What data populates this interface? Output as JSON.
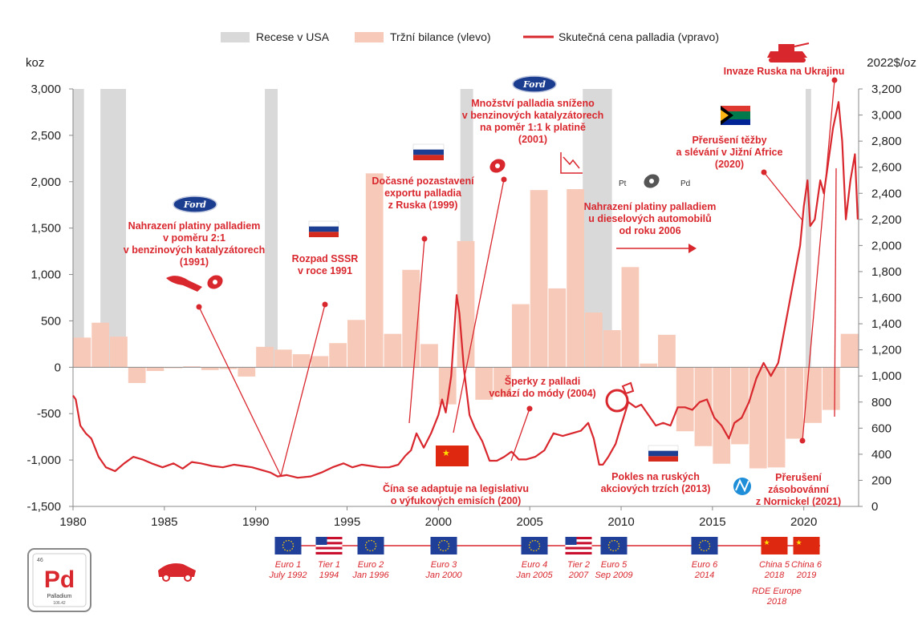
{
  "chart_data": {
    "type": "bar+line",
    "y_left_label": "koz",
    "y_right_label": "2022$/oz",
    "x_range": [
      1980,
      2023
    ],
    "y_left_range": [
      -1500,
      3000
    ],
    "y_right_range": [
      0,
      3200
    ],
    "x_ticks": [
      "1980",
      "1985",
      "1990",
      "1995",
      "2000",
      "2005",
      "2010",
      "2015",
      "2020"
    ],
    "y_left_ticks": [
      "-1,500",
      "-1,000",
      "-500",
      "0",
      "500",
      "1,000",
      "1,500",
      "2,000",
      "2,500",
      "3,000"
    ],
    "y_right_ticks": [
      "0",
      "200",
      "400",
      "600",
      "800",
      "1,000",
      "1,200",
      "1,400",
      "1,600",
      "1,800",
      "2,000",
      "2,200",
      "2,400",
      "2,600",
      "2,800",
      "3,000",
      "3,200"
    ],
    "legend": [
      {
        "label": "Recese v USA",
        "color": "#d9d9d9",
        "kind": "box"
      },
      {
        "label": "Tržní bilance (vlevo)",
        "color": "#f7c9b8",
        "kind": "box"
      },
      {
        "label": "Skutečná cena palladia (vpravo)",
        "color": "#d9272e",
        "kind": "line"
      }
    ],
    "recessions": [
      [
        1980.0,
        1980.6
      ],
      [
        1981.5,
        1982.9
      ],
      [
        1990.5,
        1991.2
      ],
      [
        2001.2,
        2001.9
      ],
      [
        2007.9,
        2009.5
      ],
      [
        2020.1,
        2020.4
      ]
    ],
    "market_balance": {
      "years": [
        1980,
        1981,
        1982,
        1983,
        1984,
        1985,
        1986,
        1987,
        1988,
        1989,
        1990,
        1991,
        1992,
        1993,
        1994,
        1995,
        1996,
        1997,
        1998,
        1999,
        2000,
        2001,
        2002,
        2003,
        2004,
        2005,
        2006,
        2007,
        2008,
        2009,
        2010,
        2011,
        2012,
        2013,
        2014,
        2015,
        2016,
        2017,
        2018,
        2019,
        2020,
        2021,
        2022
      ],
      "values": [
        320,
        480,
        330,
        -170,
        -40,
        -10,
        10,
        -30,
        -20,
        -100,
        220,
        190,
        140,
        120,
        260,
        510,
        2090,
        360,
        1050,
        250,
        -400,
        1360,
        -350,
        -320,
        680,
        1910,
        850,
        1920,
        590,
        400,
        1080,
        40,
        350,
        -690,
        -850,
        -1040,
        -830,
        -1090,
        -1080,
        -770,
        -600,
        -460,
        360
      ]
    },
    "price": {
      "x": [
        1980.0,
        1980.15,
        1980.4,
        1980.7,
        1981.0,
        1981.4,
        1981.8,
        1982.3,
        1982.8,
        1983.3,
        1983.8,
        1984.3,
        1984.9,
        1985.5,
        1986.0,
        1986.5,
        1987.0,
        1987.6,
        1988.2,
        1988.8,
        1989.3,
        1989.8,
        1990.3,
        1990.8,
        1991.2,
        1991.7,
        1992.3,
        1993.0,
        1993.6,
        1994.2,
        1994.8,
        1995.3,
        1995.8,
        1996.3,
        1996.8,
        1997.3,
        1997.8,
        1998.2,
        1998.5,
        1998.8,
        1999.2,
        1999.6,
        2000.0,
        2000.2,
        2000.4,
        2000.7,
        2001.0,
        2001.15,
        2001.4,
        2001.7,
        2002.0,
        2002.4,
        2002.8,
        2003.2,
        2003.6,
        2004.0,
        2004.4,
        2004.8,
        2005.3,
        2005.8,
        2006.3,
        2006.8,
        2007.3,
        2007.8,
        2008.2,
        2008.5,
        2008.8,
        2009.0,
        2009.3,
        2009.7,
        2010.0,
        2010.4,
        2010.8,
        2011.1,
        2011.5,
        2011.9,
        2012.3,
        2012.7,
        2013.1,
        2013.5,
        2013.9,
        2014.3,
        2014.7,
        2015.1,
        2015.5,
        2015.9,
        2016.2,
        2016.6,
        2017.0,
        2017.4,
        2017.8,
        2018.2,
        2018.6,
        2019.0,
        2019.4,
        2019.8,
        2020.0,
        2020.2,
        2020.35,
        2020.6,
        2020.9,
        2021.1,
        2021.3,
        2021.6,
        2021.9,
        2022.1,
        2022.3,
        2022.55,
        2022.8,
        2022.95
      ],
      "values": [
        850,
        820,
        620,
        560,
        520,
        380,
        300,
        270,
        330,
        380,
        360,
        330,
        300,
        330,
        290,
        340,
        330,
        310,
        300,
        320,
        310,
        300,
        280,
        260,
        230,
        240,
        220,
        230,
        260,
        300,
        330,
        300,
        320,
        310,
        300,
        300,
        320,
        390,
        430,
        560,
        450,
        560,
        700,
        820,
        720,
        1000,
        1620,
        1480,
        1050,
        700,
        600,
        500,
        350,
        350,
        380,
        420,
        360,
        360,
        380,
        430,
        560,
        540,
        560,
        580,
        640,
        520,
        320,
        320,
        380,
        480,
        620,
        800,
        760,
        780,
        700,
        620,
        640,
        620,
        760,
        760,
        740,
        800,
        820,
        680,
        620,
        520,
        640,
        680,
        800,
        980,
        1100,
        1000,
        1100,
        1400,
        1700,
        2000,
        2300,
        2500,
        2150,
        2200,
        2500,
        2400,
        2600,
        2900,
        3100,
        2800,
        2200,
        2500,
        2700,
        2200
      ]
    },
    "annotations": {
      "ann_ford1991": [
        "Nahrazení platiny palladiem",
        "v poměru 2:1",
        "v benzinových katalyzátorech",
        "(1991)"
      ],
      "ann_ussr": [
        "Rozpad SSSR",
        "v roce 1991"
      ],
      "ann_russia1999": [
        "Dočasné pozastavení",
        "exportu palladia",
        "z Ruska (1999)"
      ],
      "ann_ford2001": [
        "Množství palladia sníženo",
        "v benzinových katalyzátorech",
        "na poměr 1:1 k platině",
        "(2001)"
      ],
      "ann_diesel": [
        "Nahrazení platiny palladiem",
        "u dieselových automobilů",
        "od roku 2006"
      ],
      "ann_ukraine": [
        "Invaze Ruska na Ukrajinu"
      ],
      "ann_safrica": [
        "Přerušení těžby",
        "a slévání v Jižní Africe",
        "(2020)"
      ],
      "ann_jewelry": [
        "Šperky z palladi",
        "vchází do módy (2004)"
      ],
      "ann_china": [
        "Čína se adaptuje na legislativu",
        "o výfukových emisích (200)"
      ],
      "ann_rusmarket": [
        "Pokles na ruských",
        "akciových trzích (2013)"
      ],
      "ann_nornickel": [
        "Přerušení",
        "zásobovánní",
        "z Nornickel (2021)"
      ]
    },
    "emission_standards": [
      {
        "flag": "eu",
        "year": 1992.6,
        "lines": [
          "Euro 1",
          "July 1992"
        ]
      },
      {
        "flag": "us",
        "year": 1994.0,
        "lines": [
          "Tier 1",
          "1994"
        ]
      },
      {
        "flag": "eu",
        "year": 1996.0,
        "lines": [
          "Euro 2",
          "Jan 1996"
        ]
      },
      {
        "flag": "eu",
        "year": 2000.0,
        "lines": [
          "Euro 3",
          "Jan 2000"
        ]
      },
      {
        "flag": "eu",
        "year": 2005.0,
        "lines": [
          "Euro 4",
          "Jan 2005"
        ]
      },
      {
        "flag": "us",
        "year": 2007.0,
        "lines": [
          "Tier 2",
          "2007"
        ]
      },
      {
        "flag": "eu",
        "year": 2009.7,
        "lines": [
          "Euro 5",
          "Sep 2009"
        ]
      },
      {
        "flag": "eu",
        "year": 2014.0,
        "lines": [
          "Euro 6",
          "2014"
        ]
      },
      {
        "flag": "cn",
        "year": 2018.0,
        "lines": [
          "China 5",
          "2018"
        ]
      },
      {
        "flag": "cn",
        "year": 2019.0,
        "lines": [
          "China 6",
          "2019"
        ]
      }
    ],
    "rde_note": [
      "RDE Europe",
      "2018"
    ],
    "element_tile": {
      "number": "46",
      "symbol": "Pd",
      "name": "Palladium",
      "mass": "106.42"
    }
  }
}
